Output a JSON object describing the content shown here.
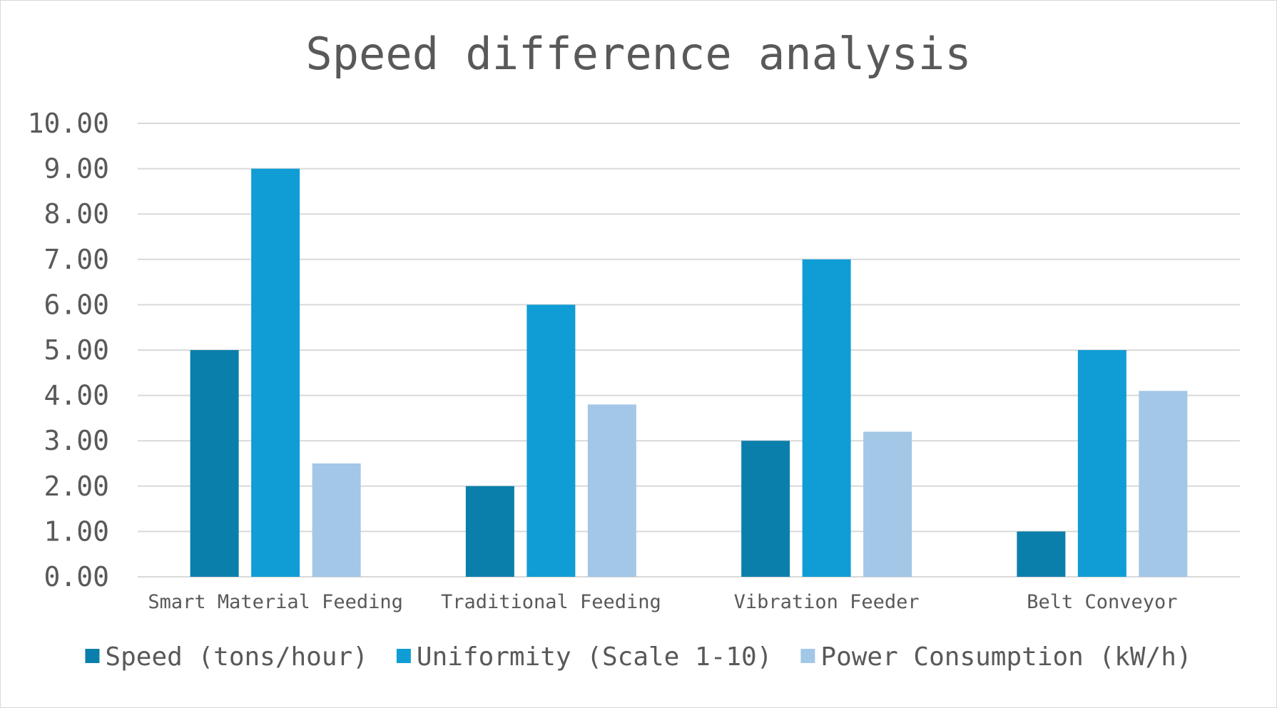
{
  "chart_data": {
    "type": "bar",
    "title": "Speed difference analysis",
    "xlabel": "",
    "ylabel": "",
    "ylim": [
      0,
      10
    ],
    "ytick_step": 1,
    "ytick_labels": [
      "0.00",
      "1.00",
      "2.00",
      "3.00",
      "4.00",
      "5.00",
      "6.00",
      "7.00",
      "8.00",
      "9.00",
      "10.00"
    ],
    "grid": true,
    "legend_position": "bottom",
    "categories": [
      "Smart Material Feeding",
      "Traditional Feeding",
      "Vibration Feeder",
      "Belt Conveyor"
    ],
    "series": [
      {
        "name": "Speed (tons/hour)",
        "color": "#0B7FAB",
        "values": [
          5,
          2,
          3,
          1
        ]
      },
      {
        "name": "Uniformity (Scale 1-10)",
        "color": "#109DD5",
        "values": [
          9,
          6,
          7,
          5
        ]
      },
      {
        "name": "Power Consumption (kW/h)",
        "color": "#A3C7E6",
        "values": [
          2.5,
          3.8,
          3.2,
          4.1
        ]
      }
    ]
  },
  "colors": {
    "grid": "#d9d9d9",
    "text": "#595959"
  }
}
